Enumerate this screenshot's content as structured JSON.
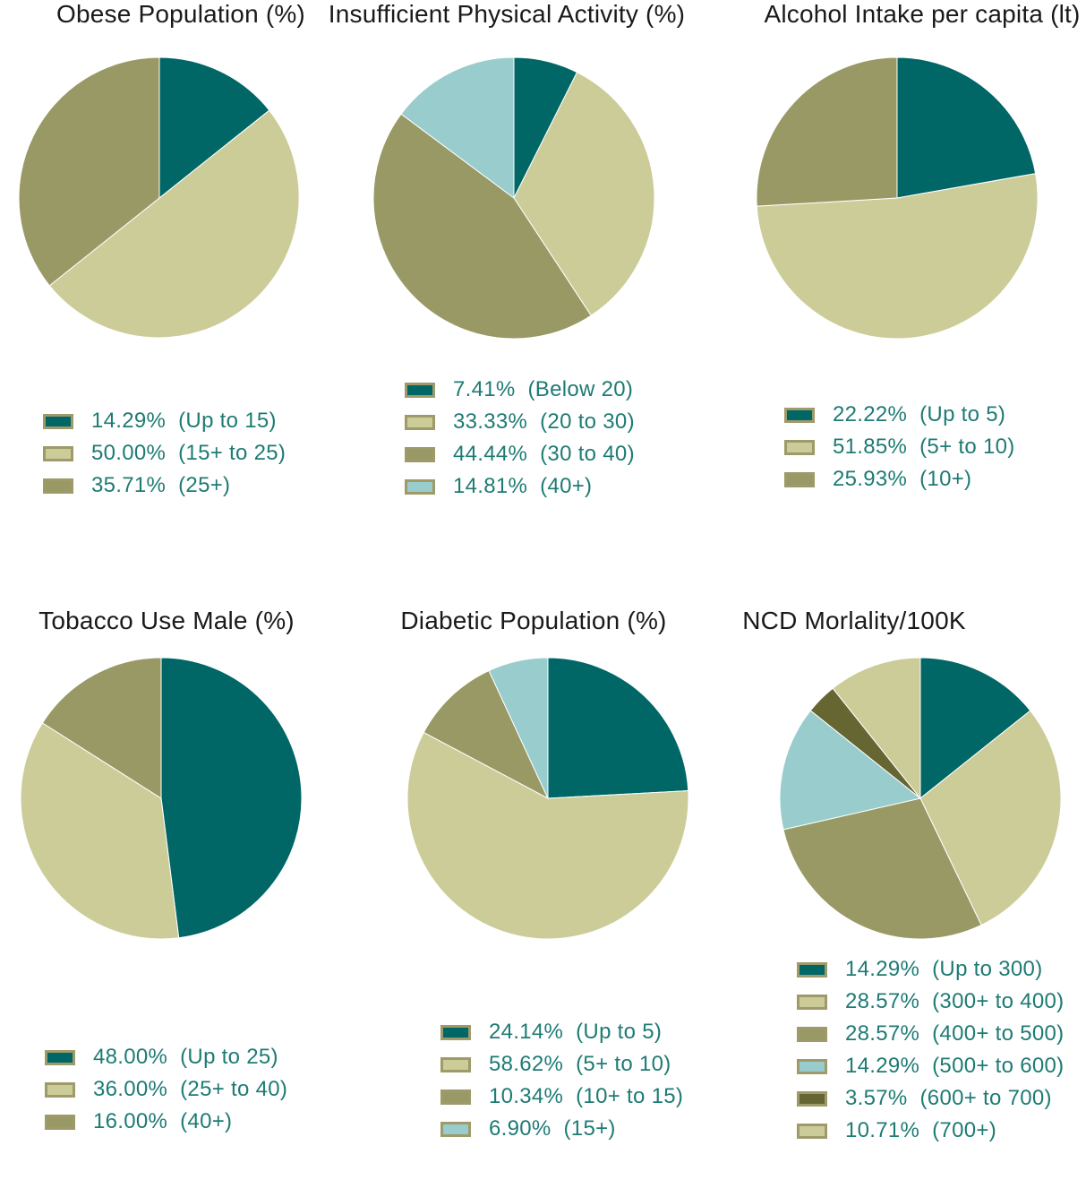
{
  "chart_data": [
    {
      "type": "pie",
      "title": "Obese Population (%)",
      "slices": [
        {
          "value": 14.29,
          "label": "14.29%",
          "category": "(Up to 15)",
          "color": "#006666"
        },
        {
          "value": 50.0,
          "label": "50.00%",
          "category": "(15+ to 25)",
          "color": "#cccc99"
        },
        {
          "value": 35.71,
          "label": "35.71%",
          "category": "(25+)",
          "color": "#999966"
        }
      ]
    },
    {
      "type": "pie",
      "title": "Insufficient Physical Activity (%)",
      "slices": [
        {
          "value": 7.41,
          "label": "7.41%",
          "category": "(Below 20)",
          "color": "#006666"
        },
        {
          "value": 33.33,
          "label": "33.33%",
          "category": "(20 to 30)",
          "color": "#cccc99"
        },
        {
          "value": 44.44,
          "label": "44.44%",
          "category": "(30 to 40)",
          "color": "#999966"
        },
        {
          "value": 14.81,
          "label": "14.81%",
          "category": "(40+)",
          "color": "#99cccc"
        }
      ]
    },
    {
      "type": "pie",
      "title": "Alcohol Intake per capita (lt)",
      "slices": [
        {
          "value": 22.22,
          "label": "22.22%",
          "category": "(Up to 5)",
          "color": "#006666"
        },
        {
          "value": 51.85,
          "label": "51.85%",
          "category": "(5+ to 10)",
          "color": "#cccc99"
        },
        {
          "value": 25.93,
          "label": "25.93%",
          "category": "(10+)",
          "color": "#999966"
        }
      ]
    },
    {
      "type": "pie",
      "title": "Tobacco Use Male (%)",
      "slices": [
        {
          "value": 48.0,
          "label": "48.00%",
          "category": "(Up to 25)",
          "color": "#006666"
        },
        {
          "value": 36.0,
          "label": "36.00%",
          "category": "(25+ to 40)",
          "color": "#cccc99"
        },
        {
          "value": 16.0,
          "label": "16.00%",
          "category": "(40+)",
          "color": "#999966"
        }
      ]
    },
    {
      "type": "pie",
      "title": "Diabetic Population (%)",
      "slices": [
        {
          "value": 24.14,
          "label": "24.14%",
          "category": "(Up to 5)",
          "color": "#006666"
        },
        {
          "value": 58.62,
          "label": "58.62%",
          "category": "(5+ to 10)",
          "color": "#cccc99"
        },
        {
          "value": 10.34,
          "label": "10.34%",
          "category": "(10+ to 15)",
          "color": "#999966"
        },
        {
          "value": 6.9,
          "label": "6.90%",
          "category": "(15+)",
          "color": "#99cccc"
        }
      ]
    },
    {
      "type": "pie",
      "title": "NCD Morlality/100K",
      "slices": [
        {
          "value": 14.29,
          "label": "14.29%",
          "category": "(Up to 300)",
          "color": "#006666"
        },
        {
          "value": 28.57,
          "label": "28.57%",
          "category": "(300+ to 400)",
          "color": "#cccc99"
        },
        {
          "value": 28.57,
          "label": "28.57%",
          "category": "(400+ to 500)",
          "color": "#999966"
        },
        {
          "value": 14.29,
          "label": "14.29%",
          "category": "(500+ to 600)",
          "color": "#99cccc"
        },
        {
          "value": 3.57,
          "label": "3.57%",
          "category": "(600+ to 700)",
          "color": "#666633"
        },
        {
          "value": 10.71,
          "label": "10.71%",
          "category": "(700+)",
          "color": "#cccc99"
        }
      ]
    }
  ]
}
